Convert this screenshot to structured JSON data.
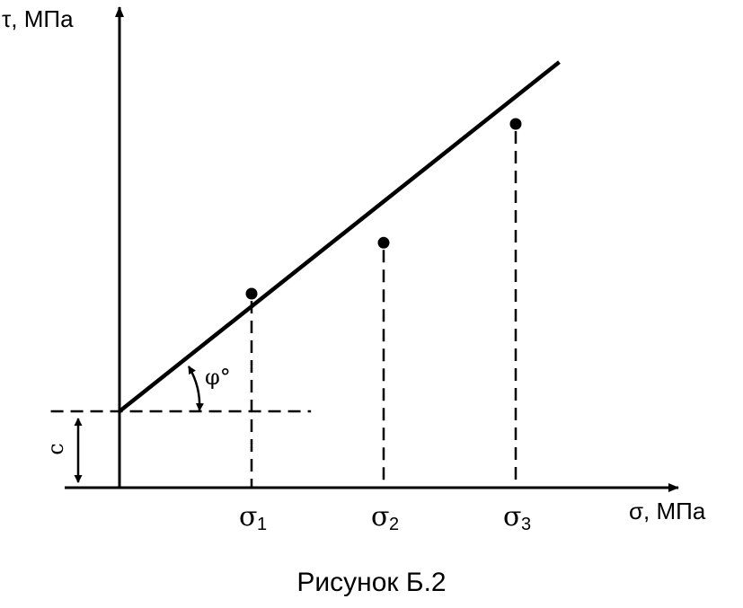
{
  "chart_data": {
    "type": "scatter",
    "title": "",
    "xlabel": "σ, МПа",
    "ylabel": "τ, МПа",
    "tick_labels": [
      {
        "symbol": "σ",
        "sub": "1"
      },
      {
        "symbol": "σ",
        "sub": "2"
      },
      {
        "symbol": "σ",
        "sub": "3"
      }
    ],
    "points": [
      {
        "x": 1,
        "y": 1.6
      },
      {
        "x": 2,
        "y": 2.02
      },
      {
        "x": 3,
        "y": 3.0
      }
    ],
    "fit_line": {
      "intercept": 0.63,
      "slope": 0.865,
      "x_end": 3.33
    },
    "xlim": [
      -0.3,
      4.2
    ],
    "ylim": [
      0,
      3.45
    ],
    "annotations": {
      "angle_label": "φ°",
      "intercept_label": "c"
    },
    "grid": false
  },
  "caption": "Рисунок Б.2"
}
